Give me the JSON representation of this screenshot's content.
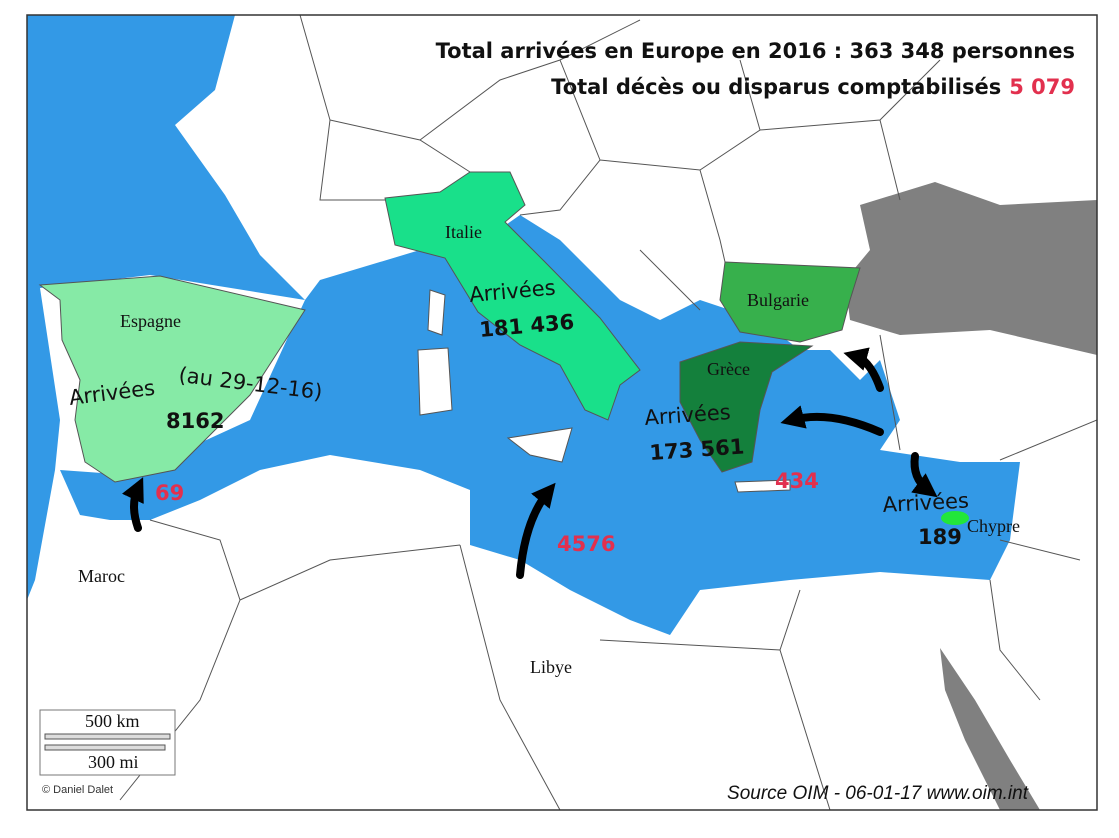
{
  "title": {
    "arrivals": "Total arrivées en Europe en 2016 : 363 348 personnes",
    "deaths_label": "Total décès ou disparus comptabilisés",
    "deaths_total": "5 079"
  },
  "places": [
    "Espagne",
    "Italie",
    "Bulgarie",
    "Grèce",
    "Chypre",
    "Maroc",
    "Libye"
  ],
  "arrivals": [
    {
      "label": "Arrivées",
      "note": "(au 29-12-16)",
      "value": "8162"
    },
    {
      "label": "Arrivées",
      "value": "181 436"
    },
    {
      "label": "Arrivées",
      "value": "173 561"
    },
    {
      "label": "Arrivées",
      "value": "189"
    }
  ],
  "deaths": [
    "69",
    "4576",
    "434"
  ],
  "scale": {
    "km": "500 km",
    "mi": "300 mi"
  },
  "credit": "© Daniel Dalet",
  "source": "Source OIM - 06-01-17 www.oim.int"
}
